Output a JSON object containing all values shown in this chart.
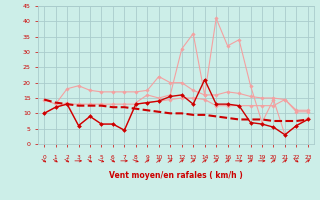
{
  "x": [
    0,
    1,
    2,
    3,
    4,
    5,
    6,
    7,
    8,
    9,
    10,
    11,
    12,
    13,
    14,
    15,
    16,
    17,
    18,
    19,
    20,
    21,
    22,
    23
  ],
  "xtick_labels": [
    "0",
    "1",
    "2",
    "3",
    "4",
    "5",
    "6",
    "7",
    "8",
    "9",
    "10",
    "11",
    "12",
    "13",
    "14",
    "15",
    "16",
    "17",
    "18",
    "19",
    "20",
    "21",
    "22",
    "23"
  ],
  "series": [
    {
      "name": "line1_light_top",
      "color": "#f4a0a0",
      "linewidth": 0.8,
      "marker": "D",
      "markersize": 1.8,
      "linestyle": "-",
      "values": [
        14.5,
        13.0,
        18.0,
        19.0,
        17.5,
        17.0,
        17.0,
        17.0,
        17.0,
        17.5,
        22.0,
        20.0,
        20.0,
        17.5,
        16.0,
        16.0,
        17.0,
        16.5,
        15.5,
        15.0,
        15.0,
        14.5,
        11.0,
        11.0
      ]
    },
    {
      "name": "line2_light_mid",
      "color": "#f4a0a0",
      "linewidth": 0.8,
      "marker": "D",
      "markersize": 1.8,
      "linestyle": "-",
      "values": [
        10.0,
        12.0,
        13.0,
        13.0,
        13.0,
        13.0,
        13.0,
        13.0,
        13.0,
        13.5,
        14.0,
        14.5,
        15.0,
        15.0,
        14.5,
        12.5,
        12.5,
        12.5,
        12.5,
        12.5,
        12.5,
        14.5,
        10.5,
        10.5
      ]
    },
    {
      "name": "line3_light_gust",
      "color": "#f4a0a0",
      "linewidth": 0.8,
      "marker": "D",
      "markersize": 1.8,
      "linestyle": "-",
      "values": [
        10.0,
        12.0,
        13.5,
        6.0,
        9.0,
        6.5,
        6.5,
        4.5,
        13.5,
        16.0,
        15.0,
        16.0,
        31.0,
        36.0,
        16.0,
        41.0,
        32.0,
        34.0,
        19.0,
        7.0,
        14.5,
        3.0,
        6.0,
        8.5
      ]
    },
    {
      "name": "line4_dark_wind",
      "color": "#cc0000",
      "linewidth": 1.0,
      "marker": "D",
      "markersize": 2.0,
      "linestyle": "-",
      "values": [
        10.0,
        12.0,
        13.0,
        6.0,
        9.0,
        6.5,
        6.5,
        4.5,
        13.0,
        13.5,
        14.0,
        15.5,
        16.0,
        13.0,
        21.0,
        13.0,
        13.0,
        12.5,
        7.0,
        6.5,
        5.5,
        3.0,
        6.0,
        8.0
      ]
    },
    {
      "name": "line5_dark_trend",
      "color": "#cc0000",
      "linewidth": 1.5,
      "marker": null,
      "markersize": 0,
      "linestyle": "--",
      "values": [
        14.5,
        13.5,
        13.0,
        12.5,
        12.5,
        12.5,
        12.0,
        12.0,
        11.5,
        11.0,
        10.5,
        10.0,
        10.0,
        9.5,
        9.5,
        9.0,
        8.5,
        8.0,
        8.0,
        8.0,
        7.5,
        7.5,
        7.5,
        8.0
      ]
    }
  ],
  "ylim": [
    0,
    45
  ],
  "yticks": [
    0,
    5,
    10,
    15,
    20,
    25,
    30,
    35,
    40,
    45
  ],
  "xlim": [
    -0.5,
    23.5
  ],
  "xlabel": "Vent moyen/en rafales ( km/h )",
  "bg_color": "#cceee8",
  "grid_color": "#aacccc",
  "text_color": "#cc0000",
  "arrow_angles": [
    45,
    45,
    45,
    90,
    45,
    60,
    45,
    90,
    60,
    135,
    135,
    135,
    135,
    135,
    135,
    135,
    135,
    90,
    135,
    90,
    135,
    135,
    45,
    135
  ]
}
